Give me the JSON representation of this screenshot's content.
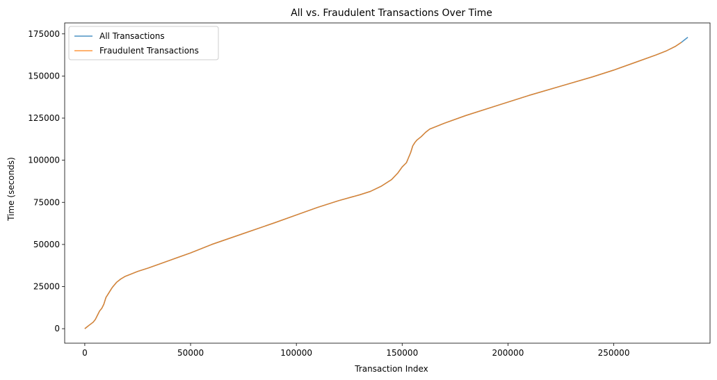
{
  "chart_data": {
    "type": "line",
    "title": "All vs. Fraudulent Transactions Over Time",
    "xlabel": "Transaction Index",
    "ylabel": "Time (seconds)",
    "xlim": [
      -9500,
      295500
    ],
    "ylim": [
      -8600,
      181500
    ],
    "xticks": [
      0,
      50000,
      100000,
      150000,
      200000,
      250000
    ],
    "yticks": [
      0,
      25000,
      50000,
      75000,
      100000,
      125000,
      150000,
      175000
    ],
    "legend_position": "top-left",
    "grid": false,
    "series": [
      {
        "name": "All Transactions",
        "color": "#1f77b4",
        "x": [
          0,
          2000,
          4000,
          5000,
          6000,
          7000,
          8000,
          9000,
          10000,
          11000,
          12000,
          13000,
          14000,
          15000,
          17000,
          19000,
          21000,
          25000,
          30000,
          40000,
          50000,
          60000,
          75000,
          90000,
          100000,
          110000,
          120000,
          130000,
          135000,
          140000,
          145000,
          148000,
          150000,
          152000,
          153000,
          154000,
          155000,
          156000,
          157000,
          159000,
          161000,
          163000,
          166000,
          170000,
          180000,
          195000,
          210000,
          225000,
          240000,
          250000,
          260000,
          270000,
          275000,
          279000,
          282000,
          285000
        ],
        "y": [
          0,
          2000,
          3900,
          5500,
          8000,
          10500,
          12000,
          14500,
          18500,
          20500,
          22500,
          24500,
          26000,
          27500,
          29500,
          31000,
          32000,
          34000,
          36000,
          40500,
          45000,
          50000,
          56500,
          63000,
          67500,
          72000,
          76000,
          79500,
          81500,
          84500,
          88500,
          92500,
          96000,
          98500,
          101500,
          104500,
          108500,
          110500,
          112000,
          114000,
          116500,
          118500,
          120000,
          122000,
          126500,
          132500,
          138500,
          144000,
          149500,
          153500,
          158000,
          162500,
          165000,
          167500,
          170000,
          173000
        ]
      },
      {
        "name": "Fraudulent Transactions",
        "color": "#ff7f0e",
        "x": [
          0,
          2000,
          4000,
          5000,
          6000,
          7000,
          8000,
          9000,
          10000,
          11000,
          12000,
          13000,
          14000,
          15000,
          17000,
          19000,
          21000,
          25000,
          30000,
          40000,
          50000,
          60000,
          75000,
          90000,
          100000,
          110000,
          120000,
          130000,
          135000,
          140000,
          145000,
          148000,
          150000,
          152000,
          153000,
          154000,
          155000,
          156000,
          157000,
          159000,
          161000,
          163000,
          166000,
          170000,
          180000,
          195000,
          210000,
          225000,
          240000,
          250000,
          260000,
          270000,
          275000,
          279000,
          282000
        ],
        "y": [
          0,
          2000,
          3900,
          5500,
          8000,
          10500,
          12000,
          14500,
          18500,
          20500,
          22500,
          24500,
          26000,
          27500,
          29500,
          31000,
          32000,
          34000,
          36000,
          40500,
          45000,
          50000,
          56500,
          63000,
          67500,
          72000,
          76000,
          79500,
          81500,
          84500,
          88500,
          92500,
          96000,
          98500,
          101500,
          104500,
          108500,
          110500,
          112000,
          114000,
          116500,
          118500,
          120000,
          122000,
          126500,
          132500,
          138500,
          144000,
          149500,
          153500,
          158000,
          162500,
          165000,
          167500,
          170000
        ]
      }
    ]
  }
}
